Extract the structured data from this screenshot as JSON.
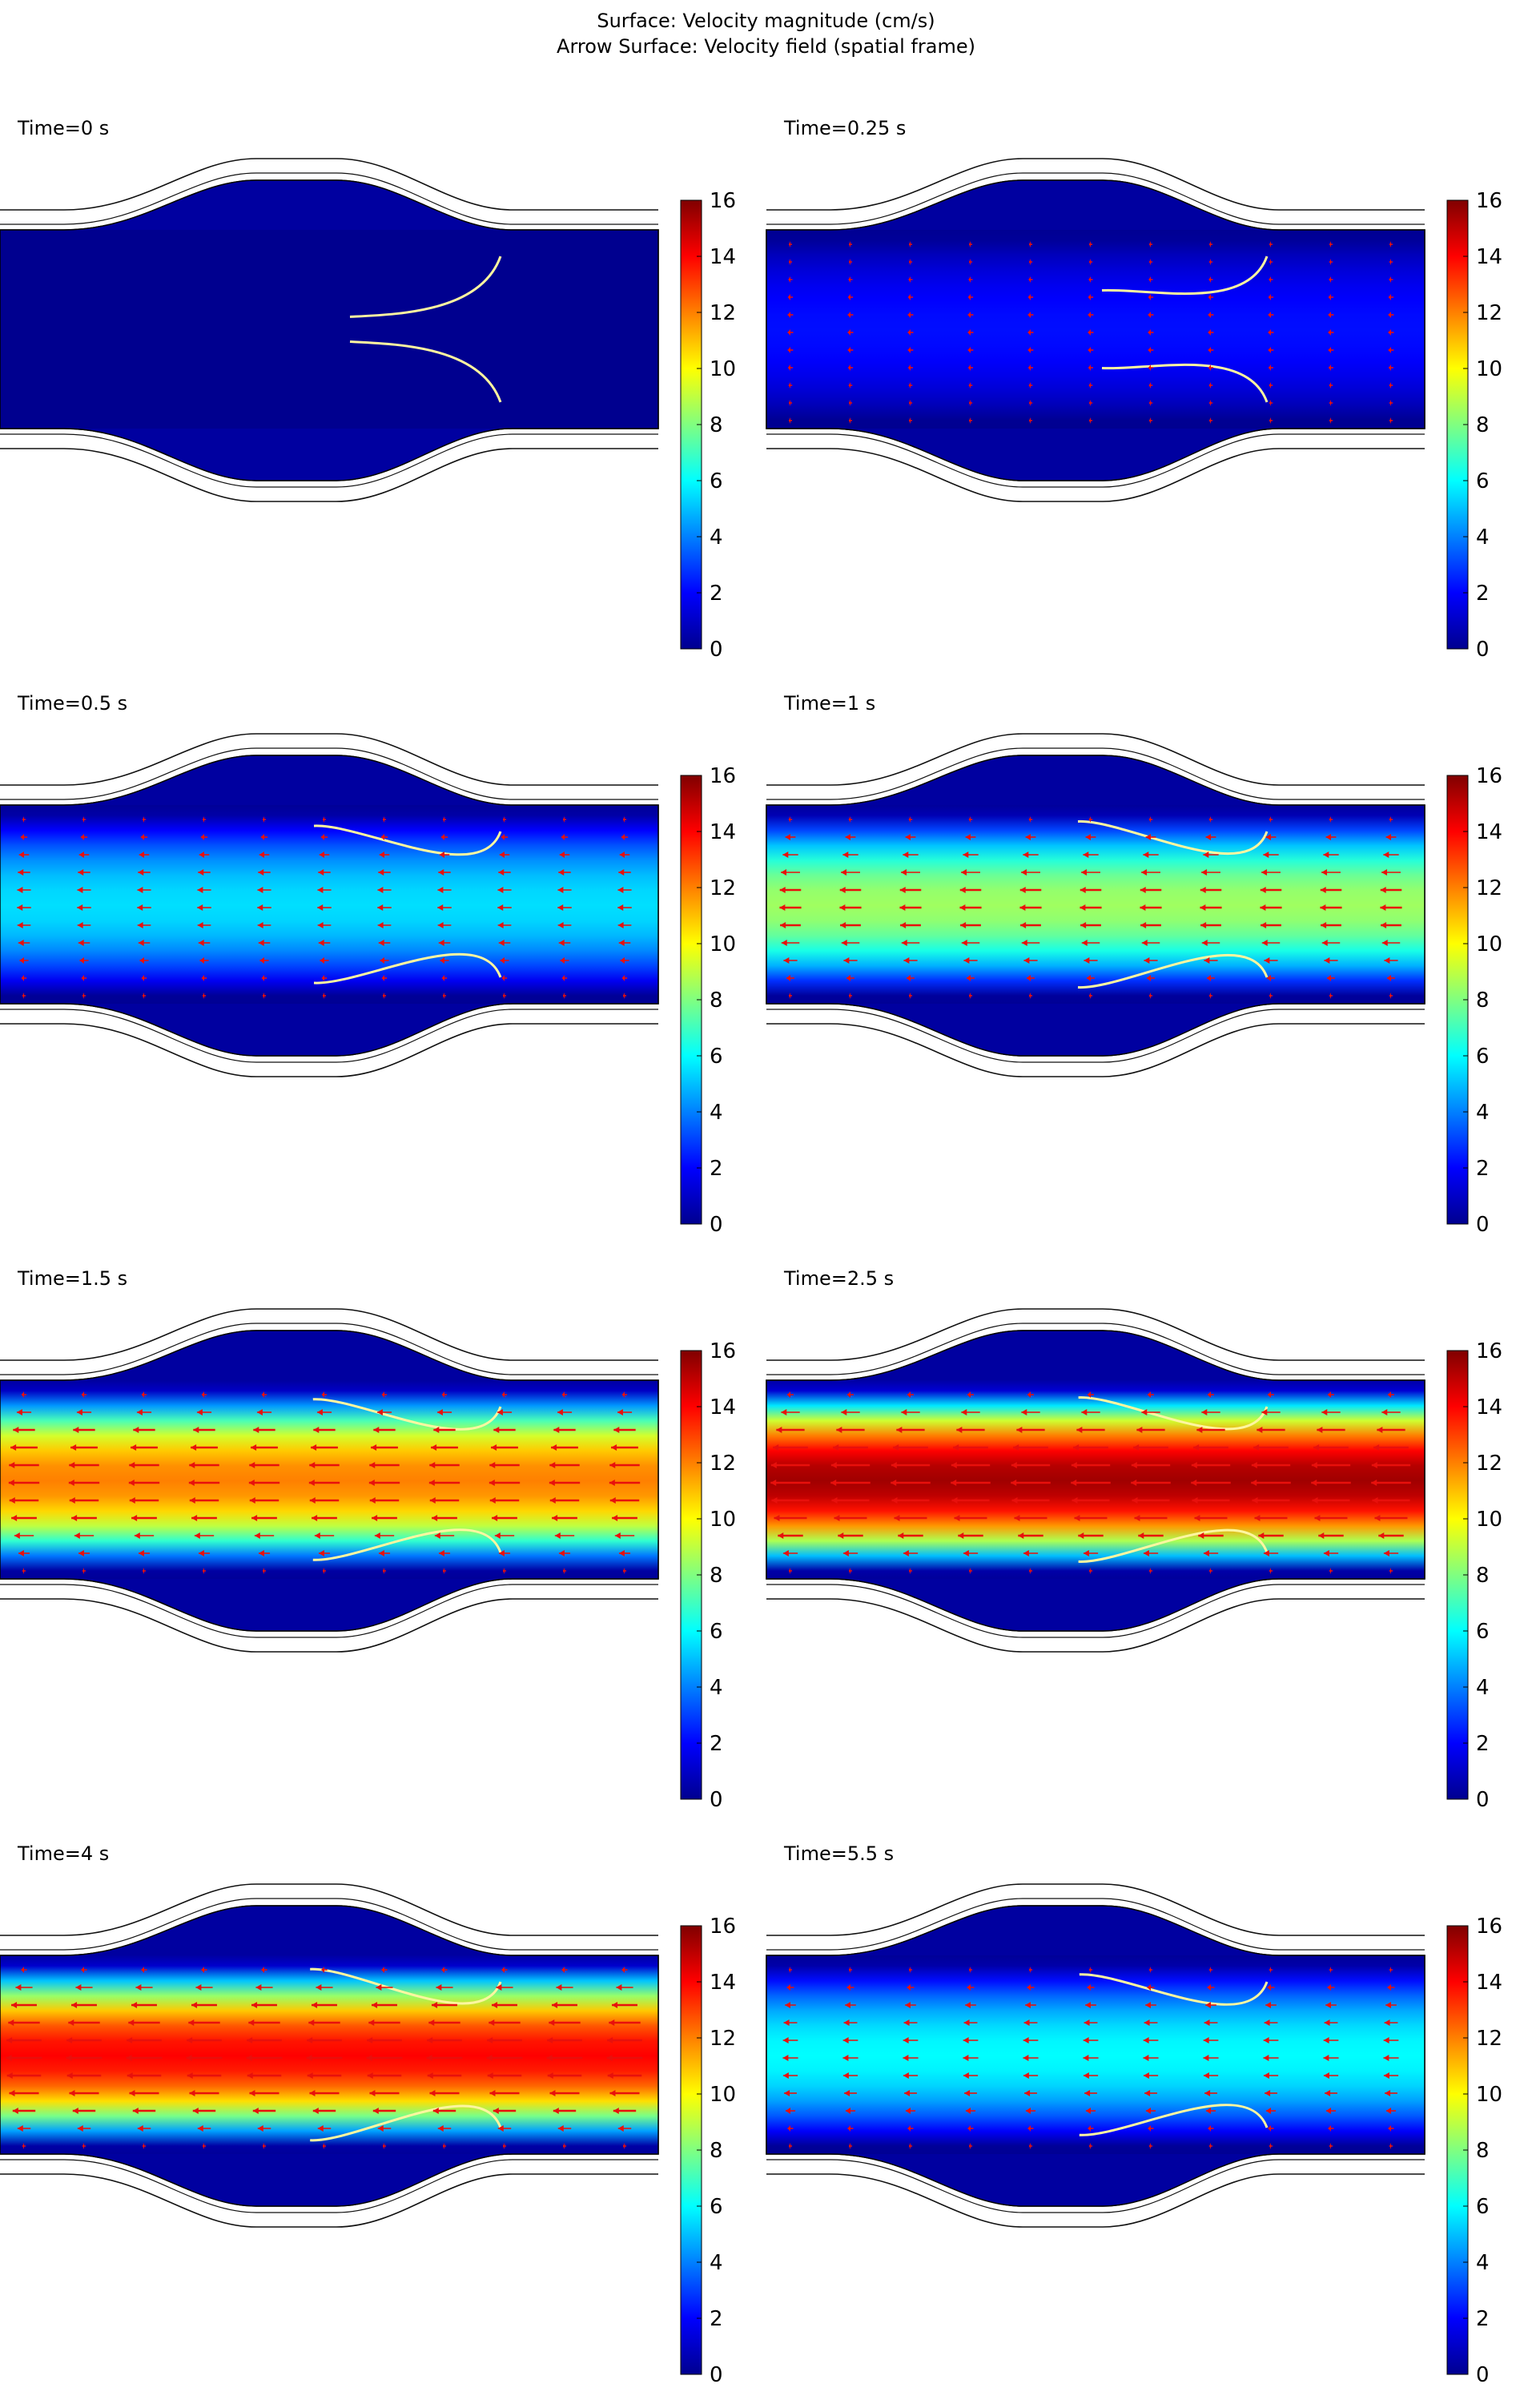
{
  "figure": {
    "title_line1": "Surface: Velocity magnitude (cm/s)",
    "title_line2": "Arrow Surface: Velocity field (spatial frame)"
  },
  "chart_data": {
    "type": "heatmap",
    "quantity": "Velocity magnitude",
    "unit": "cm/s",
    "arrow_color": "#e8100c",
    "leaflet_color": "#fff6a0",
    "colorbar": {
      "min": 0,
      "max": 16,
      "ticks": [
        "0",
        "2",
        "4",
        "6",
        "8",
        "10",
        "12",
        "14",
        "16"
      ],
      "colormap": [
        "#00008f",
        "#0000ff",
        "#0080ff",
        "#00ffff",
        "#80ff80",
        "#ffff00",
        "#ff8000",
        "#ff0000",
        "#800000"
      ]
    },
    "panels": [
      {
        "id": "t0",
        "title": "Time=0 s",
        "time_s": 0,
        "core_velocity": 0.0,
        "leaflet_open": 0.05
      },
      {
        "id": "t025",
        "title": "Time=0.25 s",
        "time_s": 0.25,
        "core_velocity": 2.2,
        "leaflet_open": 0.35
      },
      {
        "id": "t05",
        "title": "Time=0.5 s",
        "time_s": 0.5,
        "core_velocity": 5.5,
        "leaflet_open": 0.8
      },
      {
        "id": "t1",
        "title": "Time=1 s",
        "time_s": 1,
        "core_velocity": 8.5,
        "leaflet_open": 0.85
      },
      {
        "id": "t15",
        "title": "Time=1.5 s",
        "time_s": 1.5,
        "core_velocity": 12.0,
        "leaflet_open": 0.82
      },
      {
        "id": "t25",
        "title": "Time=2.5 s",
        "time_s": 2.5,
        "core_velocity": 15.5,
        "leaflet_open": 0.84
      },
      {
        "id": "t4",
        "title": "Time=4 s",
        "time_s": 4,
        "core_velocity": 14.0,
        "leaflet_open": 0.88
      },
      {
        "id": "t55",
        "title": "Time=5.5 s",
        "time_s": 5.5,
        "core_velocity": 6.0,
        "leaflet_open": 0.82
      }
    ]
  }
}
